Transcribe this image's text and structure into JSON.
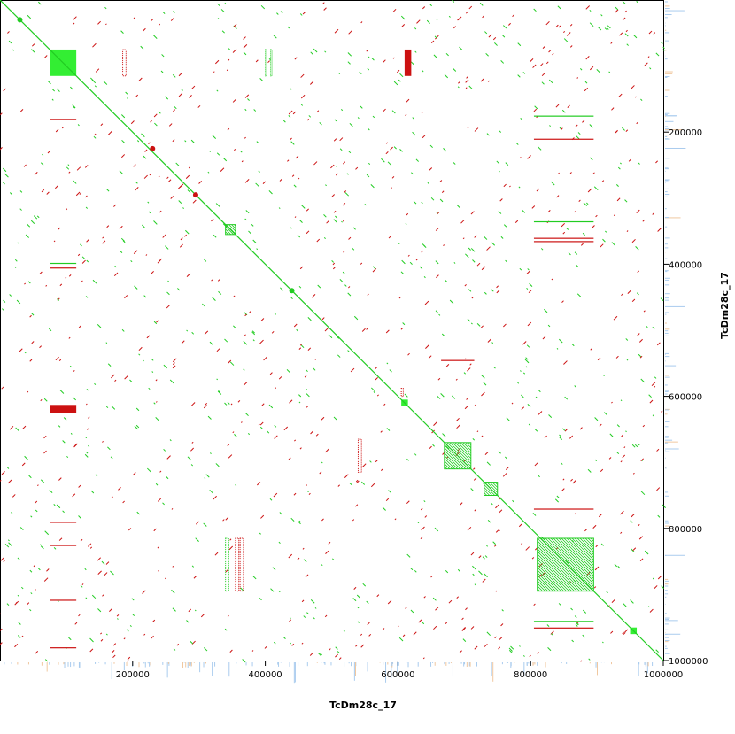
{
  "chart_data": {
    "type": "scatter",
    "title": "",
    "xlabel": "TcDm28c_17",
    "ylabel": "TcDm28c_17",
    "xlim": [
      0,
      1000000
    ],
    "ylim": [
      0,
      1000000
    ],
    "x_ticks": [
      {
        "value": 200000,
        "label": "200000"
      },
      {
        "value": 400000,
        "label": "400000"
      },
      {
        "value": 600000,
        "label": "600000"
      },
      {
        "value": 800000,
        "label": "800000"
      },
      {
        "value": 1000000,
        "label": "1000000"
      }
    ],
    "y_ticks": [
      {
        "value": 200000,
        "label": "200000"
      },
      {
        "value": 400000,
        "label": "400000"
      },
      {
        "value": 600000,
        "label": "600000"
      },
      {
        "value": 800000,
        "label": "800000"
      },
      {
        "value": 1000000,
        "label": "1000000"
      }
    ],
    "y_axis_side": "right",
    "colors": {
      "forward": "#22cc22",
      "reverse": "#cc1111",
      "bright": "#33ee33",
      "coverage": "#aaccee",
      "coverage_alt": "#f0c8a0"
    },
    "diagonal": {
      "from": [
        0,
        0
      ],
      "to": [
        1000000,
        1000000
      ],
      "color": "forward"
    },
    "blocks": [
      {
        "x": [
          75000,
          115000
        ],
        "y": [
          75000,
          115000
        ],
        "color": "bright",
        "fill": "solid"
      },
      {
        "x": [
          610000,
          620000
        ],
        "y": [
          75000,
          115000
        ],
        "color": "reverse",
        "fill": "solid"
      },
      {
        "x": [
          75000,
          115000
        ],
        "y": [
          613000,
          625000
        ],
        "color": "reverse",
        "fill": "solid"
      },
      {
        "x": [
          605000,
          615000
        ],
        "y": [
          605000,
          615000
        ],
        "color": "bright",
        "fill": "solid"
      },
      {
        "x": [
          670000,
          710000
        ],
        "y": [
          670000,
          710000
        ],
        "color": "forward",
        "fill": "hatched"
      },
      {
        "x": [
          730000,
          750000
        ],
        "y": [
          730000,
          750000
        ],
        "color": "forward",
        "fill": "hatched"
      },
      {
        "x": [
          810000,
          895000
        ],
        "y": [
          815000,
          895000
        ],
        "color": "forward",
        "fill": "hatched"
      },
      {
        "x": [
          340000,
          355000
        ],
        "y": [
          340000,
          355000
        ],
        "color": "forward",
        "fill": "hatched"
      },
      {
        "x": [
          950000,
          960000
        ],
        "y": [
          950000,
          960000
        ],
        "color": "bright",
        "fill": "solid"
      }
    ],
    "segments": [
      {
        "x": [
          75000,
          115000
        ],
        "y": [
          398000,
          398000
        ],
        "color": "forward"
      },
      {
        "x": [
          75000,
          115000
        ],
        "y": [
          405000,
          405000
        ],
        "color": "reverse"
      },
      {
        "x": [
          805000,
          895000
        ],
        "y": [
          360000,
          360000
        ],
        "color": "reverse"
      },
      {
        "x": [
          805000,
          895000
        ],
        "y": [
          365000,
          365000
        ],
        "color": "reverse"
      },
      {
        "x": [
          805000,
          895000
        ],
        "y": [
          335000,
          335000
        ],
        "color": "forward"
      },
      {
        "x": [
          665000,
          715000
        ],
        "y": [
          545000,
          545000
        ],
        "color": "reverse"
      },
      {
        "x": [
          805000,
          895000
        ],
        "y": [
          175000,
          175000
        ],
        "color": "forward"
      },
      {
        "x": [
          805000,
          895000
        ],
        "y": [
          210000,
          210000
        ],
        "color": "reverse"
      },
      {
        "x": [
          805000,
          895000
        ],
        "y": [
          770000,
          770000
        ],
        "color": "reverse"
      },
      {
        "x": [
          805000,
          895000
        ],
        "y": [
          950000,
          950000
        ],
        "color": "reverse"
      },
      {
        "x": [
          805000,
          895000
        ],
        "y": [
          940000,
          940000
        ],
        "color": "forward"
      },
      {
        "x": [
          75000,
          115000
        ],
        "y": [
          790000,
          790000
        ],
        "color": "reverse"
      },
      {
        "x": [
          75000,
          115000
        ],
        "y": [
          825000,
          825000
        ],
        "color": "reverse"
      },
      {
        "x": [
          75000,
          115000
        ],
        "y": [
          908000,
          908000
        ],
        "color": "reverse"
      },
      {
        "x": [
          75000,
          115000
        ],
        "y": [
          980000,
          980000
        ],
        "color": "reverse"
      },
      {
        "x": [
          75000,
          115000
        ],
        "y": [
          180000,
          180000
        ],
        "color": "reverse"
      },
      {
        "x": [
          540000,
          545000
        ],
        "y": [
          665000,
          715000
        ],
        "color": "reverse"
      },
      {
        "x": [
          355000,
          360000
        ],
        "y": [
          815000,
          895000
        ],
        "color": "reverse"
      },
      {
        "x": [
          362000,
          367000
        ],
        "y": [
          815000,
          895000
        ],
        "color": "reverse"
      },
      {
        "x": [
          340000,
          345000
        ],
        "y": [
          815000,
          895000
        ],
        "color": "forward"
      },
      {
        "x": [
          185000,
          190000
        ],
        "y": [
          75000,
          115000
        ],
        "color": "reverse"
      },
      {
        "x": [
          400000,
          402000
        ],
        "y": [
          75000,
          115000
        ],
        "color": "forward"
      },
      {
        "x": [
          408000,
          410000
        ],
        "y": [
          75000,
          115000
        ],
        "color": "forward"
      },
      {
        "x": [
          605000,
          608000
        ],
        "y": [
          588000,
          600000
        ],
        "color": "reverse"
      }
    ],
    "dots": [
      {
        "x": 295000,
        "y": 295000,
        "color": "reverse"
      },
      {
        "x": 230000,
        "y": 225000,
        "color": "reverse"
      },
      {
        "x": 440000,
        "y": 440000,
        "color": "forward"
      },
      {
        "x": 30000,
        "y": 30000,
        "color": "forward"
      }
    ],
    "noise": {
      "seed": 17,
      "count": 1400
    }
  }
}
